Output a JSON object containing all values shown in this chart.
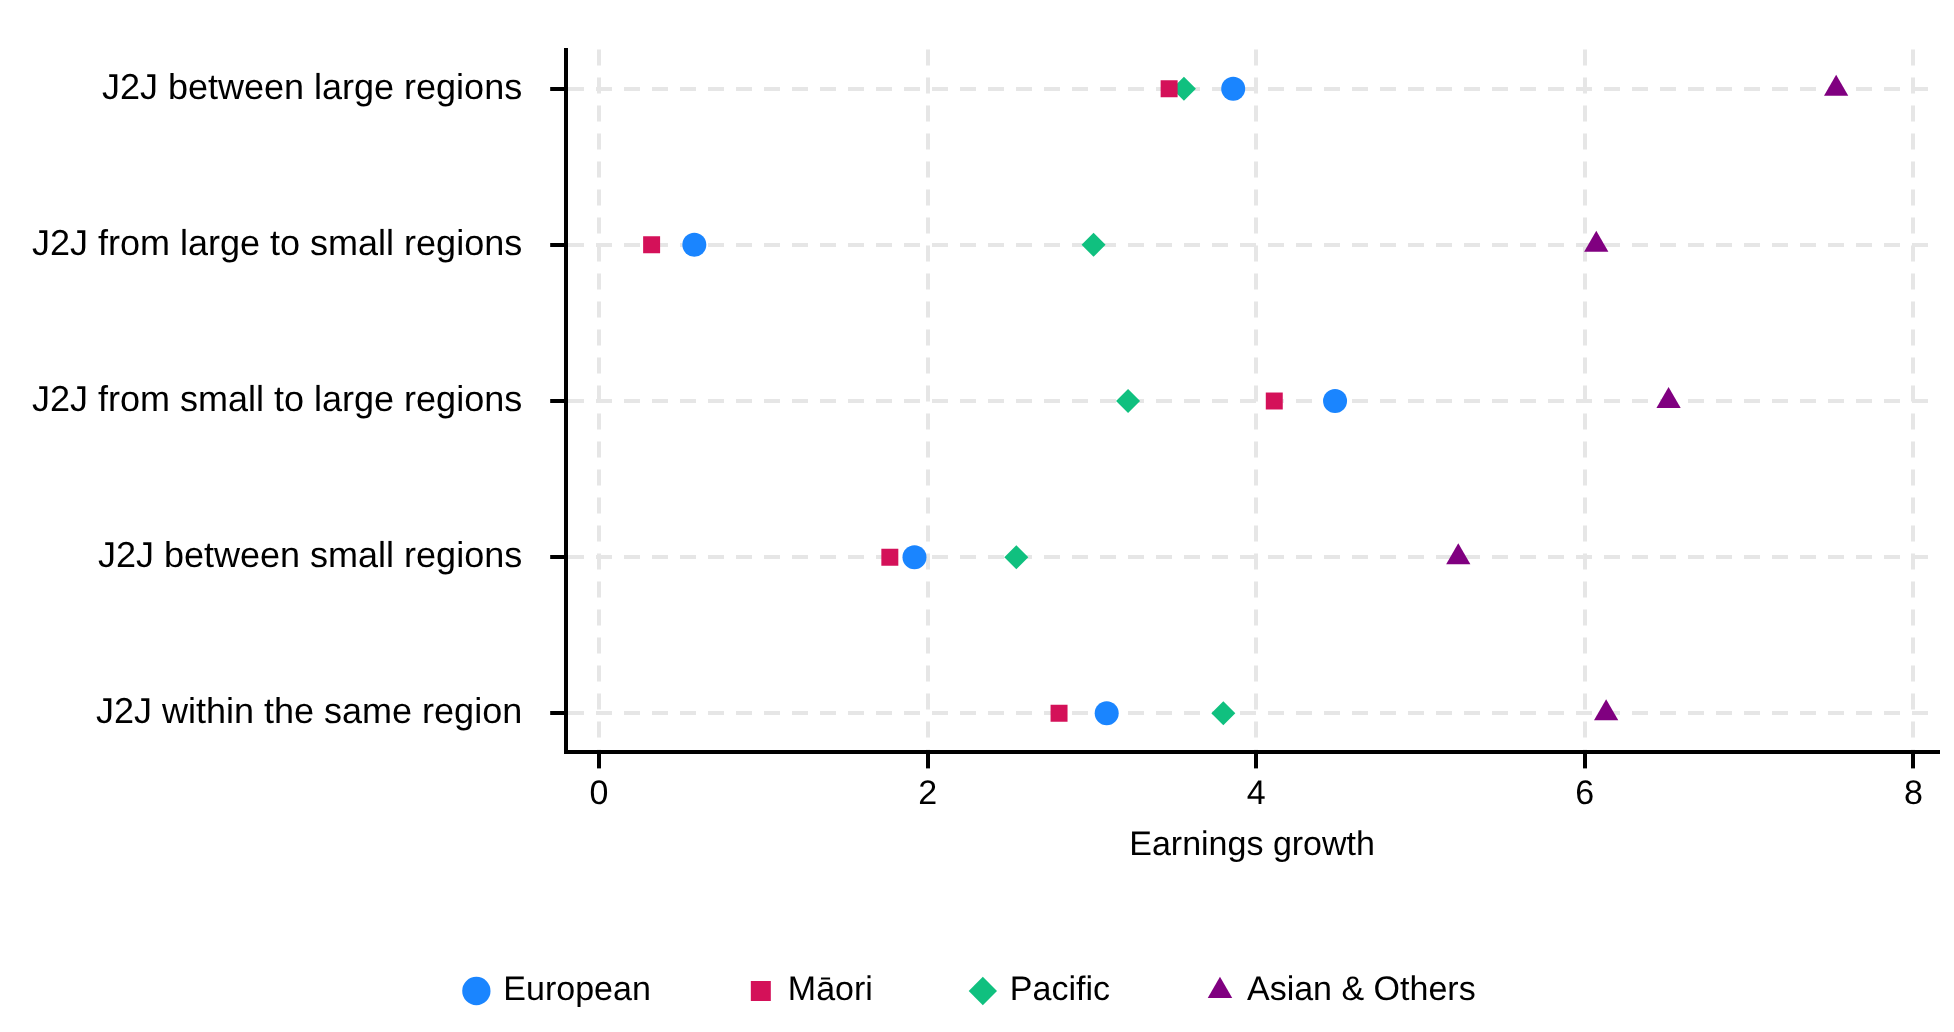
{
  "chart_data": {
    "type": "scatter",
    "orientation": "horizontal",
    "xlabel": "Earnings growth",
    "categories": [
      "J2J between large regions",
      "J2J from large to small regions",
      "J2J from small to large regions",
      "J2J between small regions",
      "J2J within the same region"
    ],
    "series": [
      {
        "name": "European",
        "color": "#1a85ff",
        "marker": "circle",
        "values": [
          3.86,
          0.58,
          4.48,
          1.92,
          3.09
        ]
      },
      {
        "name": "Māori",
        "color": "#d41159",
        "marker": "square",
        "values": [
          3.47,
          0.32,
          4.11,
          1.77,
          2.8
        ]
      },
      {
        "name": "Pacific",
        "color": "#10c07f",
        "marker": "diamond",
        "values": [
          3.56,
          3.01,
          3.22,
          2.54,
          3.8
        ]
      },
      {
        "name": "Asian & Others",
        "color": "#800080",
        "marker": "triangle",
        "values": [
          7.53,
          6.07,
          6.51,
          5.23,
          6.13
        ]
      }
    ],
    "xlim": [
      -0.2,
      8.15
    ],
    "xticks": [
      0,
      2,
      4,
      6,
      8
    ],
    "grid": true,
    "legend": "bottom"
  }
}
